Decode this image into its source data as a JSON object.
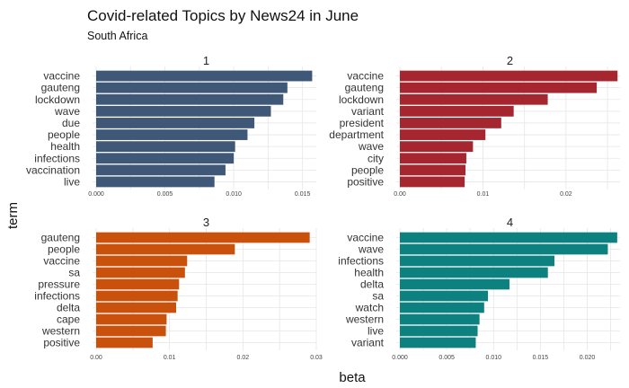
{
  "title": "Covid-related Topics by News24 in June",
  "subtitle": "South Africa",
  "xlabel": "beta",
  "ylabel": "term",
  "chart_data": {
    "type": "bar",
    "orientation": "horizontal",
    "title": "Covid-related Topics by News24 in June",
    "subtitle": "South Africa",
    "xlabel": "beta",
    "ylabel": "term",
    "grid": true,
    "panels": [
      {
        "label": "1",
        "color": "#3f5877",
        "xlim": [
          0,
          0.016
        ],
        "xticks": [
          "0.000",
          "0.005",
          "0.010",
          "0.015"
        ],
        "xtick_values": [
          0,
          0.005,
          0.01,
          0.015
        ],
        "categories": [
          "vaccine",
          "gauteng",
          "lockdown",
          "wave",
          "due",
          "people",
          "health",
          "infections",
          "vaccination",
          "live"
        ],
        "values": [
          0.0157,
          0.0139,
          0.0136,
          0.0127,
          0.0115,
          0.011,
          0.0101,
          0.01,
          0.0094,
          0.0086
        ]
      },
      {
        "label": "2",
        "color": "#a6262f",
        "xlim": [
          0,
          0.0265
        ],
        "xticks": [
          "0.00",
          "0.01",
          "0.02"
        ],
        "xtick_values": [
          0,
          0.01,
          0.02
        ],
        "categories": [
          "vaccine",
          "gauteng",
          "lockdown",
          "variant",
          "president",
          "department",
          "wave",
          "city",
          "people",
          "positive"
        ],
        "values": [
          0.0262,
          0.0237,
          0.0178,
          0.0137,
          0.0122,
          0.0103,
          0.0088,
          0.008,
          0.0079,
          0.0078
        ]
      },
      {
        "label": "3",
        "color": "#c9510c",
        "xlim": [
          0,
          0.03
        ],
        "xticks": [
          "0.00",
          "0.01",
          "0.02",
          "0.03"
        ],
        "xtick_values": [
          0,
          0.01,
          0.02,
          0.03
        ],
        "categories": [
          "gauteng",
          "people",
          "vaccine",
          "sa",
          "pressure",
          "infections",
          "delta",
          "cape",
          "western",
          "positive"
        ],
        "values": [
          0.0291,
          0.0189,
          0.0124,
          0.0121,
          0.0113,
          0.0111,
          0.0109,
          0.0096,
          0.0095,
          0.0077
        ]
      },
      {
        "label": "4",
        "color": "#0d8080",
        "xlim": [
          0,
          0.0235
        ],
        "xticks": [
          "0.000",
          "0.005",
          "0.010",
          "0.015",
          "0.020"
        ],
        "xtick_values": [
          0,
          0.005,
          0.01,
          0.015,
          0.02
        ],
        "categories": [
          "vaccine",
          "wave",
          "infections",
          "health",
          "delta",
          "sa",
          "watch",
          "western",
          "live",
          "variant"
        ],
        "values": [
          0.0232,
          0.0222,
          0.0165,
          0.0158,
          0.0117,
          0.0094,
          0.009,
          0.0085,
          0.0083,
          0.0081
        ]
      }
    ]
  }
}
